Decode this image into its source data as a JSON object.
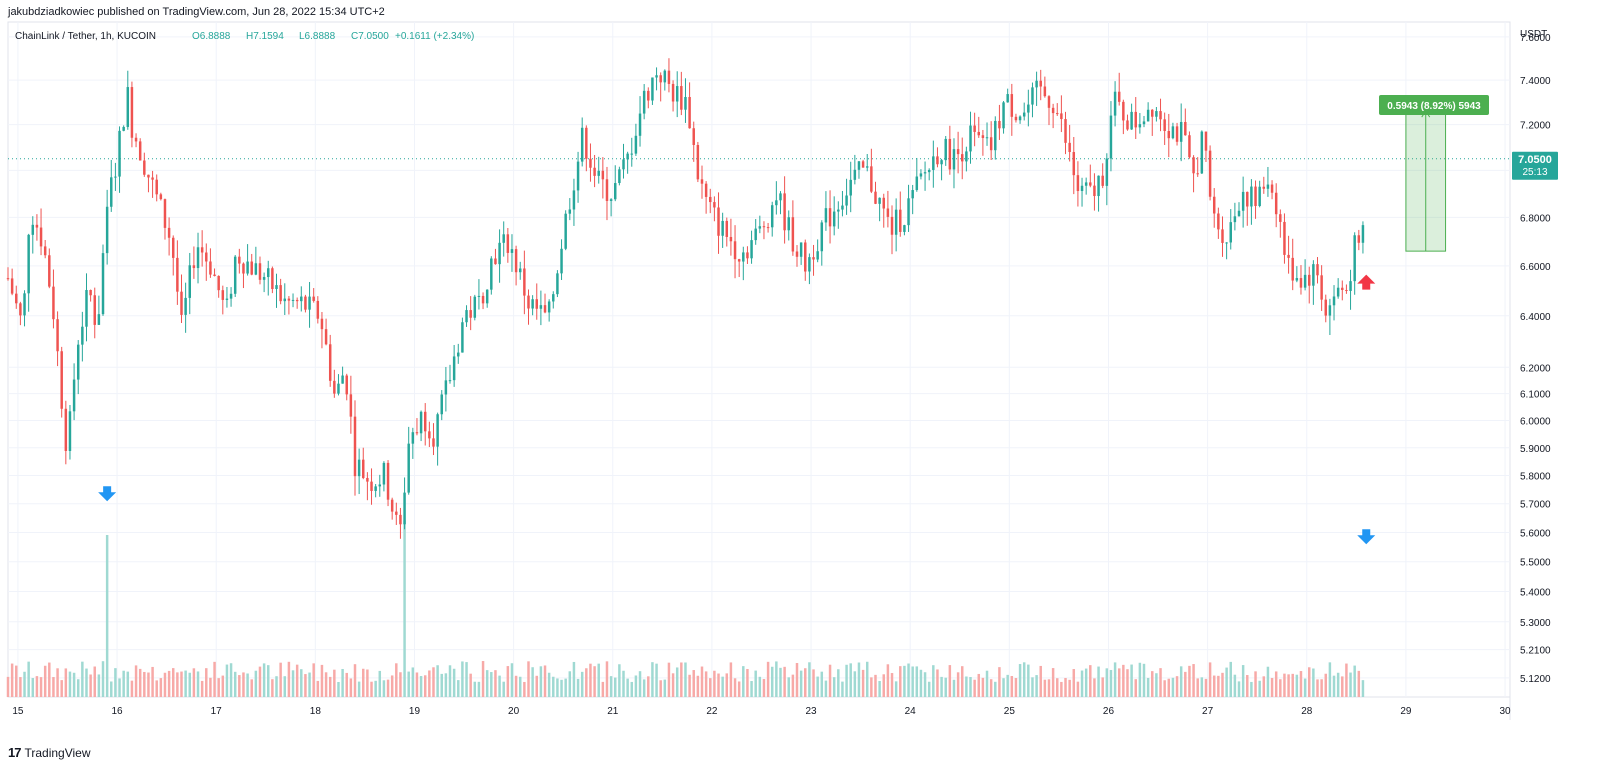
{
  "header": {
    "published_line": "jakubdziadkowiec published on TradingView.com, Jun 28, 2022 15:34 UTC+2"
  },
  "symbol_line": {
    "symbol": "ChainLink / Tether, 1h, KUCOIN",
    "open": "O6.8888",
    "high": "H7.1594",
    "low": "L6.8888",
    "close": "C7.0500",
    "change": "+0.1611 (+2.34%)"
  },
  "price_axis": {
    "currency": "USDT",
    "last_price": "7.0500",
    "countdown": "25:13"
  },
  "measure": {
    "label": "0.5943 (8.92%) 5943"
  },
  "footer": {
    "brand": "TradingView",
    "logo_glyph": "17"
  },
  "colors": {
    "up": "#26a69a",
    "down": "#ef5350",
    "up_volume": "#9fd9d2",
    "down_volume": "#f7a9a7",
    "measure": "#4caf50",
    "arrow_blue": "#2196f3",
    "arrow_red": "#f23645"
  },
  "icons": {
    "blue_arrow": "arrow-down-icon",
    "red_arrow": "arrow-up-icon"
  },
  "chart_data": {
    "type": "candlestick",
    "scale": "log",
    "interval": "1h",
    "symbol": "LINK/USDT",
    "ylim": [
      5.06,
      7.67
    ],
    "y_ticks": [
      "7.6000",
      "7.4000",
      "7.2000",
      "7.0000",
      "6.8000",
      "6.6000",
      "6.4000",
      "6.2000",
      "6.1000",
      "6.0000",
      "5.9000",
      "5.8000",
      "5.7000",
      "5.6000",
      "5.5000",
      "5.4000",
      "5.3000",
      "5.2100",
      "5.1200"
    ],
    "x_ticks": [
      "15",
      "16",
      "17",
      "18",
      "19",
      "20",
      "21",
      "22",
      "23",
      "24",
      "25",
      "26",
      "27",
      "28",
      "29",
      "30"
    ],
    "x_range_days": [
      14.9,
      30.05
    ],
    "last_price": 7.05,
    "measure_range": {
      "from": 6.66,
      "to": 7.26,
      "days": [
        29.0,
        29.4
      ]
    },
    "volume_spikes_days": [
      15.9,
      18.9,
      28.6
    ],
    "annotations": [
      {
        "type": "blue-down-arrow",
        "day": 15.9,
        "price": 5.73
      },
      {
        "type": "blue-down-arrow",
        "day": 28.6,
        "price": 5.58
      },
      {
        "type": "red-up-arrow",
        "day": 28.6,
        "price": 6.54
      }
    ],
    "anchors": [
      [
        14.9,
        6.55
      ],
      [
        15.05,
        6.35
      ],
      [
        15.12,
        6.85
      ],
      [
        15.25,
        6.7
      ],
      [
        15.35,
        6.45
      ],
      [
        15.45,
        6.05
      ],
      [
        15.5,
        5.88
      ],
      [
        15.6,
        6.3
      ],
      [
        15.72,
        6.5
      ],
      [
        15.8,
        6.35
      ],
      [
        15.9,
        6.85
      ],
      [
        16.0,
        7.05
      ],
      [
        16.1,
        7.35
      ],
      [
        16.15,
        7.2
      ],
      [
        16.3,
        7.0
      ],
      [
        16.45,
        6.82
      ],
      [
        16.55,
        6.7
      ],
      [
        16.65,
        6.35
      ],
      [
        16.8,
        6.7
      ],
      [
        16.95,
        6.6
      ],
      [
        17.1,
        6.4
      ],
      [
        17.2,
        6.65
      ],
      [
        17.35,
        6.6
      ],
      [
        17.5,
        6.55
      ],
      [
        17.7,
        6.45
      ],
      [
        17.85,
        6.45
      ],
      [
        18.05,
        6.4
      ],
      [
        18.2,
        6.08
      ],
      [
        18.3,
        6.2
      ],
      [
        18.4,
        5.85
      ],
      [
        18.55,
        5.78
      ],
      [
        18.7,
        5.8
      ],
      [
        18.85,
        5.58
      ],
      [
        18.95,
        5.95
      ],
      [
        19.1,
        6.02
      ],
      [
        19.2,
        5.95
      ],
      [
        19.35,
        6.15
      ],
      [
        19.5,
        6.4
      ],
      [
        19.65,
        6.45
      ],
      [
        19.8,
        6.65
      ],
      [
        19.95,
        6.7
      ],
      [
        20.15,
        6.45
      ],
      [
        20.35,
        6.38
      ],
      [
        20.45,
        6.62
      ],
      [
        20.55,
        6.85
      ],
      [
        20.7,
        7.15
      ],
      [
        20.85,
        6.95
      ],
      [
        21.0,
        6.9
      ],
      [
        21.15,
        7.05
      ],
      [
        21.3,
        7.3
      ],
      [
        21.45,
        7.45
      ],
      [
        21.6,
        7.35
      ],
      [
        21.75,
        7.3
      ],
      [
        21.85,
        7.0
      ],
      [
        21.95,
        6.85
      ],
      [
        22.1,
        6.75
      ],
      [
        22.3,
        6.65
      ],
      [
        22.5,
        6.75
      ],
      [
        22.65,
        6.9
      ],
      [
        22.8,
        6.72
      ],
      [
        22.95,
        6.6
      ],
      [
        23.1,
        6.75
      ],
      [
        23.25,
        6.85
      ],
      [
        23.4,
        6.95
      ],
      [
        23.55,
        7.0
      ],
      [
        23.7,
        6.85
      ],
      [
        23.8,
        6.75
      ],
      [
        23.95,
        6.82
      ],
      [
        24.1,
        6.95
      ],
      [
        24.3,
        7.1
      ],
      [
        24.45,
        7.05
      ],
      [
        24.6,
        7.15
      ],
      [
        24.8,
        7.08
      ],
      [
        24.95,
        7.3
      ],
      [
        25.15,
        7.25
      ],
      [
        25.3,
        7.35
      ],
      [
        25.45,
        7.3
      ],
      [
        25.55,
        7.15
      ],
      [
        25.7,
        6.9
      ],
      [
        25.85,
        6.9
      ],
      [
        25.95,
        7.0
      ],
      [
        26.05,
        7.3
      ],
      [
        26.25,
        7.2
      ],
      [
        26.45,
        7.3
      ],
      [
        26.6,
        7.2
      ],
      [
        26.75,
        7.15
      ],
      [
        26.85,
        6.95
      ],
      [
        26.95,
        7.15
      ],
      [
        27.05,
        6.8
      ],
      [
        27.2,
        6.72
      ],
      [
        27.35,
        6.92
      ],
      [
        27.5,
        6.85
      ],
      [
        27.6,
        6.98
      ],
      [
        27.7,
        6.85
      ],
      [
        27.8,
        6.6
      ],
      [
        27.95,
        6.55
      ],
      [
        28.1,
        6.58
      ],
      [
        28.2,
        6.4
      ],
      [
        28.3,
        6.5
      ],
      [
        28.4,
        6.5
      ],
      [
        28.5,
        6.7
      ],
      [
        28.55,
        6.6
      ],
      [
        28.58,
        6.88
      ],
      [
        28.6,
        7.05
      ]
    ]
  }
}
